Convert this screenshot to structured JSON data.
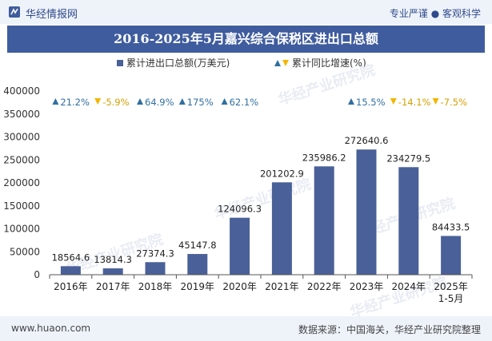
{
  "header": {
    "brand": "华经情报网",
    "tagline": "专业严谨 ● 客观科学"
  },
  "footer": {
    "url": "www.huaon.com",
    "source": "数据来源：中国海关，华经产业研究院整理"
  },
  "watermark": "华经产业研究院",
  "colors": {
    "bar": "#4a6098",
    "up": "#2f6fa0",
    "down": "#f2b600",
    "title_bg": "#3f5c9e"
  },
  "chart_data": {
    "type": "bar",
    "title": "2016-2025年5月嘉兴综合保税区进出口总额",
    "legend": {
      "bar_label": "累计进出口总额(万美元)",
      "growth_label": "累计同比增速(%)"
    },
    "categories": [
      "2016年",
      "2017年",
      "2018年",
      "2019年",
      "2020年",
      "2021年",
      "2022年",
      "2023年",
      "2024年",
      "2025年\n1-5月"
    ],
    "values": [
      18564.6,
      13814.3,
      27374.3,
      45147.8,
      124096.3,
      201202.9,
      235986.2,
      272640.6,
      234279.5,
      84433.5
    ],
    "value_labels": [
      "18564.6",
      "13814.3",
      "27374.3",
      "45147.8",
      "124096.3",
      "201202.9",
      "235986.2",
      "272640.6",
      "234279.5",
      "84433.5"
    ],
    "growth": [
      21.2,
      -5.9,
      64.9,
      175,
      62.1,
      null,
      null,
      15.5,
      -14.1,
      -7.5
    ],
    "growth_labels": [
      "21.2%",
      "-5.9%",
      "64.9%",
      "175%",
      "62.1%",
      "",
      "",
      "15.5%",
      "-14.1%",
      "-7.5%"
    ],
    "ylim": [
      0,
      400000
    ],
    "yticks": [
      0,
      50000,
      100000,
      150000,
      200000,
      250000,
      300000,
      350000,
      400000
    ],
    "ytick_labels": [
      "0",
      "50000",
      "100000",
      "150000",
      "200000",
      "250000",
      "300000",
      "350000",
      "400000"
    ],
    "grid": false
  }
}
